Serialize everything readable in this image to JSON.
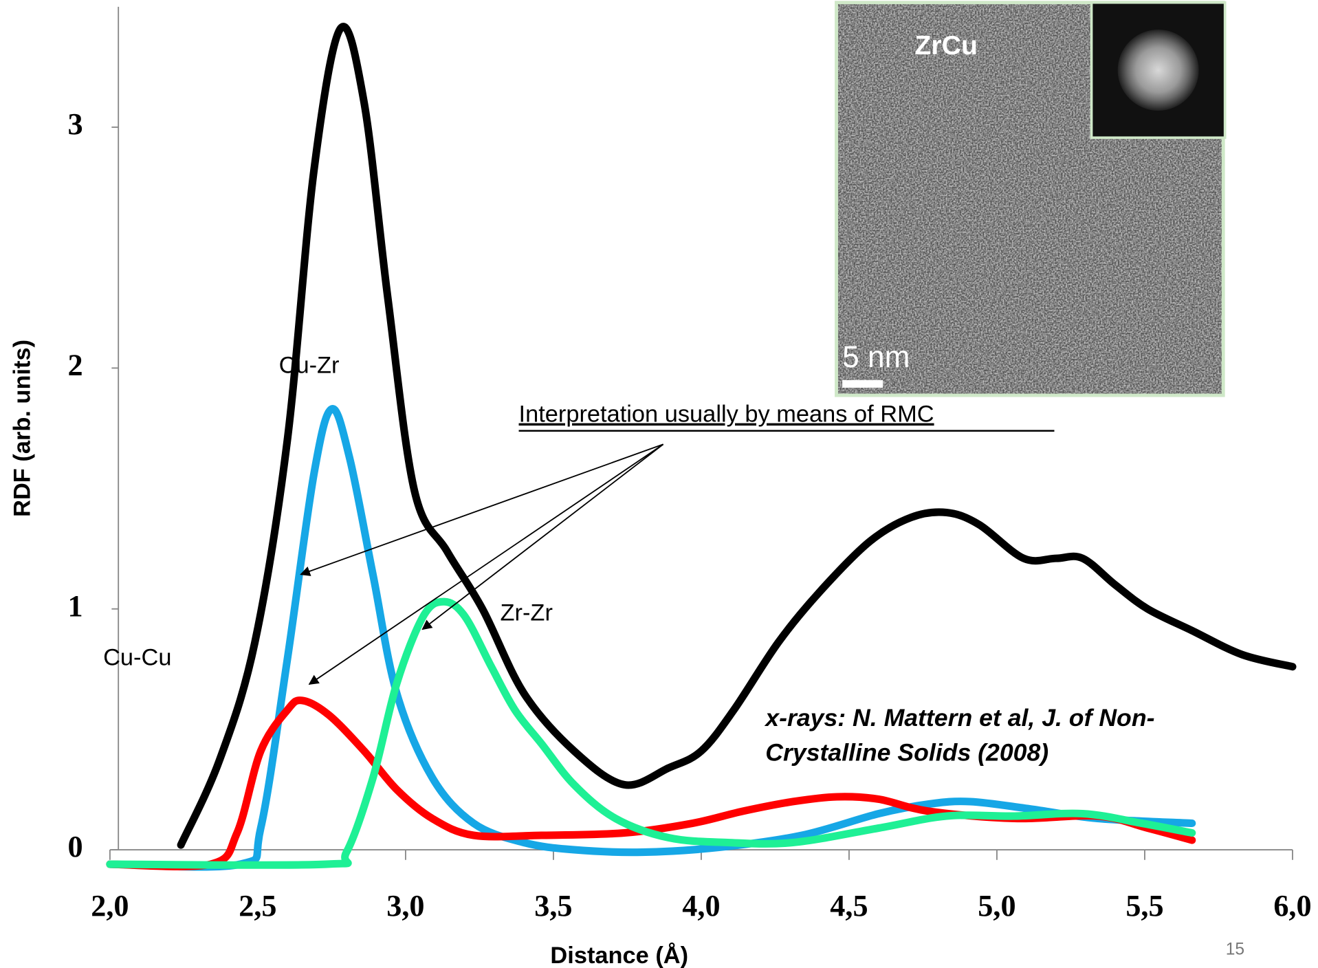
{
  "chart_data": {
    "type": "line",
    "x_label": "Distance (Å)",
    "y_label": "RDF (arb. units)",
    "xlim": [
      2,
      6
    ],
    "ylim": [
      -0.07,
      3.5
    ],
    "xticks": [
      {
        "value": 2,
        "label": "2,0"
      },
      {
        "value": 2.5,
        "label": "2,5"
      },
      {
        "value": 3,
        "label": "3,0"
      },
      {
        "value": 3.5,
        "label": "3,5"
      },
      {
        "value": 4,
        "label": "4,0"
      },
      {
        "value": 4.5,
        "label": "4,5"
      },
      {
        "value": 5,
        "label": "5,0"
      },
      {
        "value": 5.5,
        "label": "5,5"
      },
      {
        "value": 6,
        "label": "6,0"
      }
    ],
    "yticks": [
      0,
      1,
      2,
      3
    ],
    "series": [
      {
        "color": "#000000",
        "x": [
          2.24,
          2.37,
          2.49,
          2.6,
          2.69,
          2.78,
          2.86,
          2.94,
          3.03,
          3.14,
          3.26,
          3.4,
          3.57,
          3.74,
          3.89,
          4.0,
          4.11,
          4.26,
          4.4,
          4.57,
          4.71,
          4.83,
          4.94,
          5.09,
          5.2,
          5.29,
          5.4,
          5.51,
          5.66,
          5.83,
          6.0
        ],
        "values": [
          0.02,
          0.37,
          0.86,
          1.7,
          2.82,
          3.41,
          3.1,
          2.29,
          1.49,
          1.24,
          1.0,
          0.65,
          0.41,
          0.27,
          0.34,
          0.41,
          0.58,
          0.86,
          1.07,
          1.28,
          1.38,
          1.4,
          1.35,
          1.21,
          1.21,
          1.21,
          1.1,
          1.0,
          0.91,
          0.81,
          0.76
        ]
      },
      {
        "name": "Cu-Zr",
        "color": "#16a7e6",
        "x": [
          2.0,
          2.44,
          2.51,
          2.6,
          2.69,
          2.75,
          2.81,
          2.89,
          2.97,
          3.09,
          3.23,
          3.4,
          3.57,
          3.8,
          4.06,
          4.34,
          4.6,
          4.77,
          4.91,
          5.11,
          5.34,
          5.66
        ],
        "values": [
          -0.06,
          -0.06,
          0.09,
          0.79,
          1.56,
          1.83,
          1.63,
          1.14,
          0.65,
          0.3,
          0.11,
          0.03,
          0.0,
          -0.01,
          0.01,
          0.06,
          0.15,
          0.19,
          0.2,
          0.17,
          0.13,
          0.11
        ]
      },
      {
        "name": "Cu-Cu",
        "color": "#ff0000",
        "x": [
          2.0,
          2.34,
          2.43,
          2.51,
          2.6,
          2.65,
          2.74,
          2.86,
          2.97,
          3.09,
          3.23,
          3.46,
          3.74,
          3.97,
          4.14,
          4.31,
          4.46,
          4.6,
          4.77,
          5.06,
          5.34,
          5.51,
          5.66
        ],
        "values": [
          -0.06,
          -0.06,
          0.07,
          0.41,
          0.58,
          0.62,
          0.56,
          0.41,
          0.25,
          0.13,
          0.06,
          0.06,
          0.07,
          0.11,
          0.16,
          0.2,
          0.22,
          0.21,
          0.16,
          0.13,
          0.14,
          0.09,
          0.04
        ]
      },
      {
        "name": "Zr-Zr",
        "color": "#1ef095",
        "x": [
          2.0,
          2.73,
          2.8,
          2.89,
          2.97,
          3.06,
          3.13,
          3.2,
          3.29,
          3.37,
          3.46,
          3.57,
          3.71,
          3.89,
          4.09,
          4.31,
          4.6,
          4.83,
          5.06,
          5.29,
          5.49,
          5.66
        ],
        "values": [
          -0.06,
          -0.06,
          -0.01,
          0.3,
          0.69,
          0.97,
          1.03,
          0.97,
          0.76,
          0.58,
          0.44,
          0.27,
          0.13,
          0.05,
          0.03,
          0.03,
          0.09,
          0.14,
          0.14,
          0.15,
          0.11,
          0.07
        ]
      }
    ],
    "annotation": "Interpretation usually by means of RMC",
    "citation": [
      "x-rays: N. Mattern et al, J. of Non-",
      "Crystalline Solids (2008)"
    ],
    "inset": {
      "label": "ZrCu",
      "scale": "5 nm"
    },
    "page_number": "15"
  }
}
